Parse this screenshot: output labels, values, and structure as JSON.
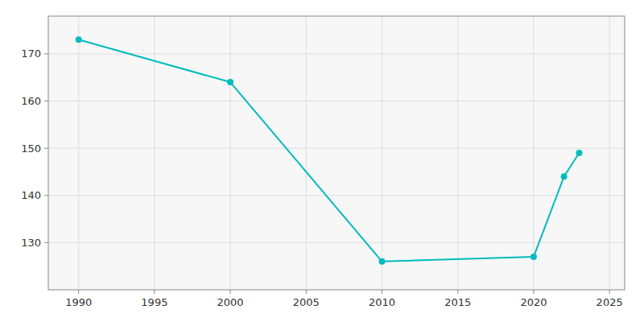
{
  "chart_data": {
    "type": "line",
    "x": [
      1990,
      2000,
      2010,
      2020,
      2022,
      2023
    ],
    "values": [
      173,
      164,
      126,
      127,
      144,
      149
    ],
    "color": "#00BBBF",
    "marker": "circle",
    "xlim": [
      1988,
      2026
    ],
    "ylim": [
      120,
      178
    ],
    "xticks": [
      1990,
      1995,
      2000,
      2005,
      2010,
      2015,
      2020,
      2025
    ],
    "yticks": [
      130,
      140,
      150,
      160,
      170
    ],
    "grid": true
  }
}
